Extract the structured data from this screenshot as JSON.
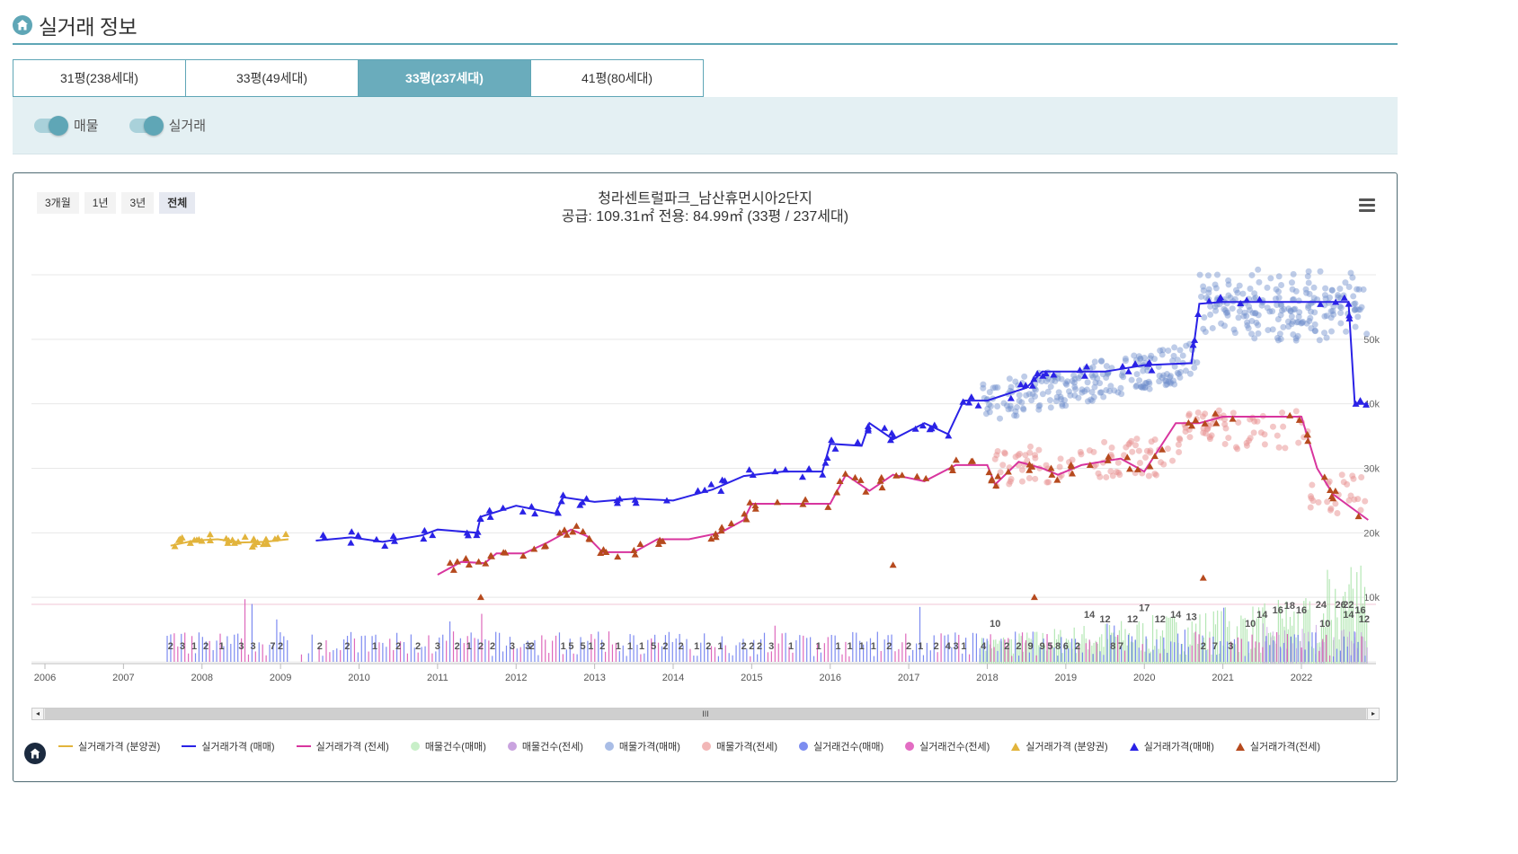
{
  "header": {
    "title": "실거래 정보"
  },
  "tabs": [
    {
      "label": "31평(238세대)"
    },
    {
      "label": "33평(49세대)"
    },
    {
      "label": "33평(237세대)"
    },
    {
      "label": "41평(80세대)"
    }
  ],
  "toggles": [
    {
      "label": "매물",
      "on": true
    },
    {
      "label": "실거래",
      "on": true
    }
  ],
  "range_buttons": [
    "3개월",
    "1년",
    "3년",
    "전체"
  ],
  "active_range": "전체",
  "chart": {
    "title": "청라센트럴파크_남산휴먼시아2단지",
    "subtitle": "공급: 109.31㎡ 전용: 84.99㎡ (33평 / 237세대)"
  },
  "colors": {
    "accent": "#5fa6b6",
    "presale": "#e2b43c",
    "sale": "#2a22e6",
    "jeonse": "#d8359e",
    "listing_sale_dot": "#6f8fcc",
    "listing_jeonse_dot": "#e89090",
    "jeonse_triangle": "#b64a1e",
    "count_sale_listing": "#9fe0a0",
    "count_jeonse_listing": "#b17ccf",
    "count_sale_deal": "#6677ee",
    "count_jeonse_deal": "#d84fb0"
  },
  "scrollbar": {
    "grip": "III",
    "left_arrow": "◂",
    "right_arrow": "▸"
  },
  "chart_data": {
    "type": "line",
    "x_axis": {
      "type": "year",
      "ticks": [
        "2006",
        "2007",
        "2008",
        "2009",
        "2010",
        "2011",
        "2012",
        "2013",
        "2014",
        "2015",
        "2016",
        "2017",
        "2018",
        "2019",
        "2020",
        "2021",
        "2022"
      ],
      "range": [
        2006,
        2022.95
      ]
    },
    "y_axis": {
      "unit": "만원",
      "ticks": [
        "10k",
        "20k",
        "30k",
        "40k",
        "50k"
      ],
      "range": [
        0,
        60000
      ]
    },
    "grid": true,
    "legend_position": "bottom",
    "series": [
      {
        "name": "실거래가격 (분양권)",
        "kind": "line",
        "points": [
          [
            2007.6,
            18000
          ],
          [
            2007.9,
            18800
          ],
          [
            2008.2,
            19000
          ],
          [
            2008.5,
            18500
          ],
          [
            2008.8,
            18600
          ],
          [
            2009.1,
            19000
          ]
        ]
      },
      {
        "name": "실거래가격 (매매)",
        "kind": "line",
        "points": [
          [
            2009.45,
            18800
          ],
          [
            2009.9,
            19300
          ],
          [
            2010.3,
            18600
          ],
          [
            2010.8,
            19600
          ],
          [
            2011.0,
            20500
          ],
          [
            2011.5,
            20000
          ],
          [
            2011.55,
            22500
          ],
          [
            2012.0,
            24200
          ],
          [
            2012.5,
            23000
          ],
          [
            2012.6,
            25500
          ],
          [
            2013.0,
            24800
          ],
          [
            2013.5,
            25300
          ],
          [
            2014.0,
            25000
          ],
          [
            2014.5,
            26700
          ],
          [
            2014.9,
            28800
          ],
          [
            2015.4,
            29500
          ],
          [
            2015.9,
            29500
          ],
          [
            2016.0,
            33800
          ],
          [
            2016.4,
            33500
          ],
          [
            2016.5,
            37000
          ],
          [
            2016.8,
            34500
          ],
          [
            2017.2,
            37000
          ],
          [
            2017.5,
            35300
          ],
          [
            2017.7,
            40500
          ],
          [
            2018.0,
            40500
          ],
          [
            2018.5,
            42500
          ],
          [
            2018.7,
            45000
          ],
          [
            2019.1,
            45000
          ],
          [
            2019.5,
            45000
          ],
          [
            2020.0,
            46000
          ],
          [
            2020.6,
            46300
          ],
          [
            2020.7,
            55500
          ],
          [
            2021.0,
            55800
          ],
          [
            2022.0,
            55800
          ],
          [
            2022.6,
            55800
          ],
          [
            2022.68,
            40000
          ],
          [
            2022.85,
            40000
          ]
        ]
      },
      {
        "name": "실거래가격 (전세)",
        "kind": "line",
        "points": [
          [
            2011.0,
            13500
          ],
          [
            2011.3,
            15500
          ],
          [
            2011.6,
            15300
          ],
          [
            2011.75,
            16800
          ],
          [
            2012.1,
            16800
          ],
          [
            2012.4,
            18500
          ],
          [
            2012.7,
            20500
          ],
          [
            2012.9,
            19500
          ],
          [
            2013.1,
            17000
          ],
          [
            2013.5,
            17000
          ],
          [
            2013.8,
            19000
          ],
          [
            2014.2,
            19000
          ],
          [
            2014.6,
            20000
          ],
          [
            2014.9,
            22000
          ],
          [
            2015.0,
            24500
          ],
          [
            2015.5,
            24500
          ],
          [
            2016.0,
            24500
          ],
          [
            2016.2,
            29000
          ],
          [
            2016.5,
            26500
          ],
          [
            2016.8,
            29000
          ],
          [
            2017.2,
            28000
          ],
          [
            2017.6,
            30500
          ],
          [
            2018.0,
            30500
          ],
          [
            2018.1,
            27500
          ],
          [
            2018.4,
            31000
          ],
          [
            2018.7,
            30000
          ],
          [
            2018.9,
            29000
          ],
          [
            2019.2,
            30500
          ],
          [
            2019.7,
            31500
          ],
          [
            2020.0,
            29500
          ],
          [
            2020.4,
            37000
          ],
          [
            2020.7,
            37000
          ],
          [
            2021.0,
            38000
          ],
          [
            2022.0,
            38000
          ],
          [
            2022.2,
            30000
          ],
          [
            2022.4,
            26000
          ],
          [
            2022.85,
            22000
          ]
        ]
      },
      {
        "name": "매물가격(매매)",
        "kind": "scatter",
        "note": "dense listings 2017.9–2022.9, ~40k–58k"
      },
      {
        "name": "매물가격(전세)",
        "kind": "scatter",
        "note": "dense listings 2018.1–2022.9, ~22k–38k"
      },
      {
        "name": "매물건수(매매)",
        "kind": "bar"
      },
      {
        "name": "매물건수(전세)",
        "kind": "bar"
      },
      {
        "name": "실거래건수(매매)",
        "kind": "bar"
      },
      {
        "name": "실거래건수(전세)",
        "kind": "bar"
      }
    ],
    "count_labels": [
      {
        "x": 2007.6,
        "v": "2"
      },
      {
        "x": 2007.75,
        "v": "3"
      },
      {
        "x": 2007.9,
        "v": "1"
      },
      {
        "x": 2008.05,
        "v": "2"
      },
      {
        "x": 2008.25,
        "v": "1"
      },
      {
        "x": 2008.5,
        "v": "3"
      },
      {
        "x": 2008.65,
        "v": "3"
      },
      {
        "x": 2008.9,
        "v": "7"
      },
      {
        "x": 2009.0,
        "v": "2"
      },
      {
        "x": 2009.5,
        "v": "2"
      },
      {
        "x": 2009.85,
        "v": "2"
      },
      {
        "x": 2010.2,
        "v": "1"
      },
      {
        "x": 2010.5,
        "v": "2"
      },
      {
        "x": 2010.75,
        "v": "2"
      },
      {
        "x": 2011.0,
        "v": "3"
      },
      {
        "x": 2011.25,
        "v": "2"
      },
      {
        "x": 2011.4,
        "v": "1"
      },
      {
        "x": 2011.55,
        "v": "2"
      },
      {
        "x": 2011.7,
        "v": "2"
      },
      {
        "x": 2011.95,
        "v": "3"
      },
      {
        "x": 2012.15,
        "v": "3"
      },
      {
        "x": 2012.2,
        "v": "2"
      },
      {
        "x": 2012.6,
        "v": "1"
      },
      {
        "x": 2012.7,
        "v": "5"
      },
      {
        "x": 2012.85,
        "v": "5"
      },
      {
        "x": 2012.95,
        "v": "1"
      },
      {
        "x": 2013.1,
        "v": "2"
      },
      {
        "x": 2013.3,
        "v": "1"
      },
      {
        "x": 2013.45,
        "v": "1"
      },
      {
        "x": 2013.6,
        "v": "1"
      },
      {
        "x": 2013.75,
        "v": "5"
      },
      {
        "x": 2013.9,
        "v": "2"
      },
      {
        "x": 2014.1,
        "v": "2"
      },
      {
        "x": 2014.3,
        "v": "1"
      },
      {
        "x": 2014.45,
        "v": "2"
      },
      {
        "x": 2014.6,
        "v": "1"
      },
      {
        "x": 2014.9,
        "v": "2"
      },
      {
        "x": 2015.0,
        "v": "2"
      },
      {
        "x": 2015.1,
        "v": "2"
      },
      {
        "x": 2015.25,
        "v": "3"
      },
      {
        "x": 2015.5,
        "v": "1"
      },
      {
        "x": 2015.85,
        "v": "1"
      },
      {
        "x": 2016.1,
        "v": "1"
      },
      {
        "x": 2016.25,
        "v": "1"
      },
      {
        "x": 2016.4,
        "v": "1"
      },
      {
        "x": 2016.55,
        "v": "1"
      },
      {
        "x": 2016.75,
        "v": "2"
      },
      {
        "x": 2017.0,
        "v": "2"
      },
      {
        "x": 2017.15,
        "v": "1"
      },
      {
        "x": 2017.35,
        "v": "2"
      },
      {
        "x": 2017.5,
        "v": "4"
      },
      {
        "x": 2017.6,
        "v": "3"
      },
      {
        "x": 2017.7,
        "v": "1"
      },
      {
        "x": 2017.95,
        "v": "4"
      },
      {
        "x": 2018.1,
        "v": "10"
      },
      {
        "x": 2018.25,
        "v": "2"
      },
      {
        "x": 2018.4,
        "v": "2"
      },
      {
        "x": 2018.55,
        "v": "9"
      },
      {
        "x": 2018.7,
        "v": "9"
      },
      {
        "x": 2018.8,
        "v": "5"
      },
      {
        "x": 2018.9,
        "v": "8"
      },
      {
        "x": 2019.0,
        "v": "6"
      },
      {
        "x": 2019.15,
        "v": "2"
      },
      {
        "x": 2019.3,
        "v": "14"
      },
      {
        "x": 2019.5,
        "v": "12"
      },
      {
        "x": 2019.6,
        "v": "8"
      },
      {
        "x": 2019.7,
        "v": "7"
      },
      {
        "x": 2019.85,
        "v": "12"
      },
      {
        "x": 2020.0,
        "v": "17"
      },
      {
        "x": 2020.2,
        "v": "12"
      },
      {
        "x": 2020.4,
        "v": "14"
      },
      {
        "x": 2020.6,
        "v": "13"
      },
      {
        "x": 2020.75,
        "v": "2"
      },
      {
        "x": 2020.9,
        "v": "7"
      },
      {
        "x": 2021.1,
        "v": "3"
      },
      {
        "x": 2021.35,
        "v": "10"
      },
      {
        "x": 2021.5,
        "v": "14"
      },
      {
        "x": 2021.7,
        "v": "16"
      },
      {
        "x": 2021.85,
        "v": "18"
      },
      {
        "x": 2022.0,
        "v": "16"
      },
      {
        "x": 2022.25,
        "v": "24"
      },
      {
        "x": 2022.5,
        "v": "26"
      },
      {
        "x": 2022.6,
        "v": "22"
      },
      {
        "x": 2022.75,
        "v": "16"
      },
      {
        "x": 2022.8,
        "v": "12"
      },
      {
        "x": 2022.6,
        "v": "14"
      },
      {
        "x": 2022.3,
        "v": "10"
      }
    ]
  },
  "legend": [
    {
      "label": "실거래가격 (분양권)",
      "symbol": "line",
      "color": "#e2b43c"
    },
    {
      "label": "실거래가격 (매매)",
      "symbol": "line",
      "color": "#2a22e6"
    },
    {
      "label": "실거래가격 (전세)",
      "symbol": "line",
      "color": "#d8359e"
    },
    {
      "label": "매물건수(매매)",
      "symbol": "dot",
      "color": "#c8efc8"
    },
    {
      "label": "매물건수(전세)",
      "symbol": "dot",
      "color": "#c9a3df"
    },
    {
      "label": "매물가격(매매)",
      "symbol": "dot",
      "color": "#a9bde6"
    },
    {
      "label": "매물가격(전세)",
      "symbol": "dot",
      "color": "#f2b7b7"
    },
    {
      "label": "실거래건수(매매)",
      "symbol": "dot",
      "color": "#7d8df0"
    },
    {
      "label": "실거래건수(전세)",
      "symbol": "dot",
      "color": "#e36dc3"
    },
    {
      "label": "실거래가격 (분양권)",
      "symbol": "tri",
      "color": "#e2b43c"
    },
    {
      "label": "실거래가격(매매)",
      "symbol": "tri",
      "color": "#2a22e6"
    },
    {
      "label": "실거래가격(전세)",
      "symbol": "tri",
      "color": "#b64a1e"
    }
  ]
}
